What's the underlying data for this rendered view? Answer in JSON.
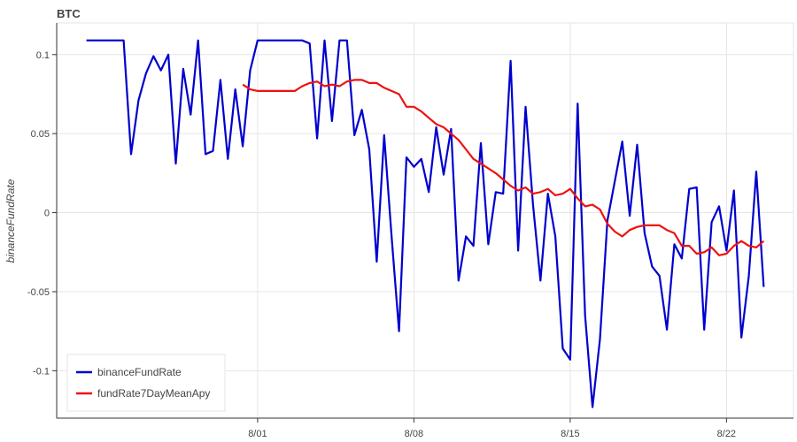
{
  "chart_data": {
    "type": "line",
    "title": "BTC",
    "xlabel": "",
    "ylabel": "binanceFundRate",
    "xlim": [
      "2023-07-23",
      "2023-08-25"
    ],
    "ylim": [
      -0.13,
      0.12
    ],
    "yticks": [
      0.1,
      0.05,
      0,
      -0.05,
      -0.1
    ],
    "ytick_labels": [
      "0.1",
      "0.05",
      "0",
      "-0.05",
      "-0.1"
    ],
    "xticks": [
      "2023-08-01",
      "2023-08-08",
      "2023-08-15",
      "2023-08-22"
    ],
    "xtick_labels": [
      "8/01",
      "8/08",
      "8/15",
      "8/22"
    ],
    "grid": true,
    "legend_position": "bottom-left",
    "series": [
      {
        "name": "binanceFundRate",
        "color": "#0000cd",
        "x": [
          "2023-07-24T08:00",
          "2023-07-26T00:00",
          "2023-07-26T08:00",
          "2023-07-26T16:00",
          "2023-07-27T00:00",
          "2023-07-27T08:00",
          "2023-07-27T16:00",
          "2023-07-28T00:00",
          "2023-07-28T08:00",
          "2023-07-28T16:00",
          "2023-07-29T00:00",
          "2023-07-29T08:00",
          "2023-07-29T16:00",
          "2023-07-30T00:00",
          "2023-07-30T08:00",
          "2023-07-30T16:00",
          "2023-07-31T00:00",
          "2023-07-31T08:00",
          "2023-07-31T16:00",
          "2023-08-01T00:00",
          "2023-08-01T08:00",
          "2023-08-03T00:00",
          "2023-08-03T08:00",
          "2023-08-03T16:00",
          "2023-08-04T00:00",
          "2023-08-04T08:00",
          "2023-08-04T16:00",
          "2023-08-05T00:00",
          "2023-08-05T08:00",
          "2023-08-05T16:00",
          "2023-08-06T00:00",
          "2023-08-06T08:00",
          "2023-08-06T16:00",
          "2023-08-07T00:00",
          "2023-08-07T08:00",
          "2023-08-07T16:00",
          "2023-08-08T00:00",
          "2023-08-08T08:00",
          "2023-08-08T16:00",
          "2023-08-09T00:00",
          "2023-08-09T08:00",
          "2023-08-09T16:00",
          "2023-08-10T00:00",
          "2023-08-10T08:00",
          "2023-08-10T16:00",
          "2023-08-11T00:00",
          "2023-08-11T08:00",
          "2023-08-11T16:00",
          "2023-08-12T00:00",
          "2023-08-12T08:00",
          "2023-08-12T16:00",
          "2023-08-13T00:00",
          "2023-08-13T08:00",
          "2023-08-13T16:00",
          "2023-08-14T00:00",
          "2023-08-14T08:00",
          "2023-08-14T16:00",
          "2023-08-15T00:00",
          "2023-08-15T08:00",
          "2023-08-15T16:00",
          "2023-08-16T00:00",
          "2023-08-16T08:00",
          "2023-08-16T16:00",
          "2023-08-17T00:00",
          "2023-08-17T08:00",
          "2023-08-17T16:00",
          "2023-08-18T00:00",
          "2023-08-18T08:00",
          "2023-08-18T16:00",
          "2023-08-19T00:00",
          "2023-08-19T08:00",
          "2023-08-19T16:00",
          "2023-08-20T00:00",
          "2023-08-20T08:00",
          "2023-08-20T16:00",
          "2023-08-21T00:00",
          "2023-08-21T08:00",
          "2023-08-21T16:00",
          "2023-08-22T00:00",
          "2023-08-22T08:00",
          "2023-08-22T16:00",
          "2023-08-23T00:00",
          "2023-08-23T08:00",
          "2023-08-23T16:00"
        ],
        "y": [
          0.109,
          0.109,
          0.037,
          0.071,
          0.088,
          0.099,
          0.09,
          0.1,
          0.031,
          0.091,
          0.062,
          0.109,
          0.037,
          0.039,
          0.084,
          0.034,
          0.078,
          0.042,
          0.09,
          0.109,
          0.109,
          0.109,
          0.107,
          0.047,
          0.109,
          0.058,
          0.109,
          0.109,
          0.049,
          0.065,
          0.04,
          -0.031,
          0.049,
          -0.015,
          -0.075,
          0.035,
          0.029,
          0.034,
          0.013,
          0.054,
          0.024,
          0.053,
          -0.043,
          -0.015,
          -0.021,
          0.044,
          -0.02,
          0.013,
          0.012,
          0.096,
          -0.024,
          0.067,
          0.005,
          -0.043,
          0.012,
          -0.015,
          -0.086,
          -0.093,
          0.069,
          -0.065,
          -0.123,
          -0.08,
          -0.005,
          0.02,
          0.045,
          -0.002,
          0.043,
          -0.013,
          -0.034,
          -0.04,
          -0.074,
          -0.02,
          -0.029,
          0.015,
          0.016,
          -0.074,
          -0.006,
          0.004,
          -0.024,
          0.014,
          -0.079,
          -0.04,
          0.026,
          -0.047
        ]
      },
      {
        "name": "fundRate7DayMeanApy",
        "color": "#ee1111",
        "x": [
          "2023-07-31T08:00",
          "2023-07-31T16:00",
          "2023-08-01T00:00",
          "2023-08-01T08:00",
          "2023-08-01T16:00",
          "2023-08-02T00:00",
          "2023-08-02T08:00",
          "2023-08-02T16:00",
          "2023-08-03T00:00",
          "2023-08-03T08:00",
          "2023-08-03T16:00",
          "2023-08-04T00:00",
          "2023-08-04T08:00",
          "2023-08-04T16:00",
          "2023-08-05T00:00",
          "2023-08-05T08:00",
          "2023-08-05T16:00",
          "2023-08-06T00:00",
          "2023-08-06T08:00",
          "2023-08-06T16:00",
          "2023-08-07T00:00",
          "2023-08-07T08:00",
          "2023-08-07T16:00",
          "2023-08-08T00:00",
          "2023-08-08T08:00",
          "2023-08-08T16:00",
          "2023-08-09T00:00",
          "2023-08-09T08:00",
          "2023-08-09T16:00",
          "2023-08-10T00:00",
          "2023-08-10T08:00",
          "2023-08-10T16:00",
          "2023-08-11T00:00",
          "2023-08-11T08:00",
          "2023-08-11T16:00",
          "2023-08-12T00:00",
          "2023-08-12T08:00",
          "2023-08-12T16:00",
          "2023-08-13T00:00",
          "2023-08-13T08:00",
          "2023-08-13T16:00",
          "2023-08-14T00:00",
          "2023-08-14T08:00",
          "2023-08-14T16:00",
          "2023-08-15T00:00",
          "2023-08-15T08:00",
          "2023-08-15T16:00",
          "2023-08-16T00:00",
          "2023-08-16T08:00",
          "2023-08-16T16:00",
          "2023-08-17T00:00",
          "2023-08-17T08:00",
          "2023-08-17T16:00",
          "2023-08-18T00:00",
          "2023-08-18T08:00",
          "2023-08-18T16:00",
          "2023-08-19T00:00",
          "2023-08-19T08:00",
          "2023-08-19T16:00",
          "2023-08-20T00:00",
          "2023-08-20T08:00",
          "2023-08-20T16:00",
          "2023-08-21T00:00",
          "2023-08-21T08:00",
          "2023-08-21T16:00",
          "2023-08-22T00:00",
          "2023-08-22T08:00",
          "2023-08-22T16:00",
          "2023-08-23T00:00",
          "2023-08-23T08:00",
          "2023-08-23T16:00"
        ],
        "y": [
          0.081,
          0.078,
          0.077,
          0.077,
          0.077,
          0.077,
          0.077,
          0.077,
          0.08,
          0.082,
          0.083,
          0.08,
          0.081,
          0.08,
          0.083,
          0.084,
          0.084,
          0.082,
          0.082,
          0.079,
          0.077,
          0.075,
          0.067,
          0.067,
          0.064,
          0.06,
          0.056,
          0.054,
          0.05,
          0.046,
          0.04,
          0.034,
          0.031,
          0.028,
          0.025,
          0.021,
          0.017,
          0.014,
          0.016,
          0.012,
          0.013,
          0.015,
          0.011,
          0.012,
          0.015,
          0.009,
          0.004,
          0.005,
          0.002,
          -0.007,
          -0.012,
          -0.015,
          -0.011,
          -0.009,
          -0.008,
          -0.008,
          -0.008,
          -0.011,
          -0.013,
          -0.021,
          -0.021,
          -0.026,
          -0.025,
          -0.022,
          -0.027,
          -0.026,
          -0.021,
          -0.018,
          -0.021,
          -0.022,
          -0.018
        ]
      }
    ]
  }
}
